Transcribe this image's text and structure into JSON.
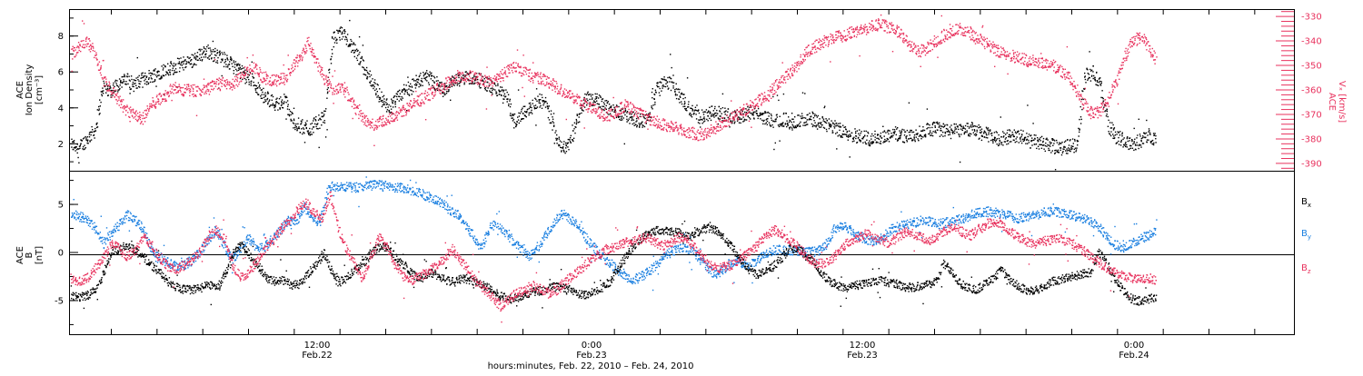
{
  "chart_data": [
    {
      "type": "scatter",
      "ylabel_lines": [
        "ACE",
        "Ion Density",
        "[cm⁻³]"
      ],
      "ylim": [
        0.5,
        9.5
      ],
      "yticks": [
        2,
        4,
        6,
        8
      ],
      "y2label_lines": [
        "ACE",
        "Vₓ [km/s]"
      ],
      "y2lim": [
        -393,
        -327
      ],
      "y2ticks": [
        -330,
        -340,
        -350,
        -360,
        -370,
        -380,
        -390
      ],
      "grid": false,
      "series": [
        {
          "axis": "left",
          "color": "#000000",
          "values": [
            2.0,
            1.8,
            2.3,
            2.8,
            5.2,
            5.0,
            5.4,
            5.6,
            5.3,
            5.6,
            5.8,
            6.0,
            6.2,
            6.3,
            6.5,
            6.6,
            6.9,
            7.2,
            7.0,
            6.8,
            6.5,
            6.2,
            5.8,
            5.5,
            4.8,
            4.5,
            4.2,
            4.5,
            3.2,
            3.0,
            2.8,
            3.2,
            3.5,
            7.8,
            8.2,
            7.8,
            7.0,
            6.2,
            5.5,
            4.6,
            4.0,
            4.4,
            5.0,
            5.2,
            5.6,
            5.8,
            5.4,
            5.0,
            5.4,
            5.6,
            5.8,
            5.6,
            5.5,
            5.2,
            5.0,
            4.6,
            3.2,
            3.8,
            4.0,
            4.5,
            4.2,
            2.8,
            1.8,
            2.0,
            3.5,
            4.6,
            4.5,
            4.3,
            4.0,
            3.8,
            3.6,
            3.4,
            3.3,
            3.5,
            5.2,
            5.6,
            5.2,
            4.6,
            4.0,
            3.6,
            3.5,
            3.8,
            3.7,
            3.6,
            3.5,
            3.7,
            3.8,
            3.6,
            3.4,
            3.3,
            3.4,
            3.2,
            3.3,
            3.4,
            3.3,
            3.1,
            3.0,
            2.8,
            2.6,
            2.5,
            2.4,
            2.3,
            2.4,
            2.5,
            2.6,
            2.5,
            2.4,
            2.6,
            2.8,
            2.9,
            2.8,
            2.7,
            2.8,
            2.9,
            2.8,
            2.6,
            2.5,
            2.3,
            2.4,
            2.5,
            2.4,
            2.2,
            2.1,
            2.0,
            1.9,
            1.8,
            1.9,
            2.0,
            5.8,
            6.0,
            5.2,
            3.0,
            2.4,
            2.2,
            2.0,
            2.2,
            2.5,
            2.3
          ]
        },
        {
          "axis": "right",
          "color": "#e8325e",
          "values": [
            -345,
            -342,
            -340,
            -345,
            -355,
            -360,
            -364,
            -368,
            -370,
            -372,
            -366,
            -364,
            -362,
            -358,
            -360,
            -360,
            -360,
            -360,
            -358,
            -357,
            -358,
            -356,
            -352,
            -350,
            -354,
            -356,
            -356,
            -355,
            -350,
            -346,
            -340,
            -348,
            -355,
            -360,
            -358,
            -362,
            -368,
            -372,
            -374,
            -373,
            -372,
            -370,
            -368,
            -366,
            -364,
            -362,
            -360,
            -358,
            -356,
            -355,
            -354,
            -355,
            -356,
            -356,
            -355,
            -352,
            -350,
            -352,
            -354,
            -355,
            -356,
            -358,
            -360,
            -362,
            -364,
            -366,
            -368,
            -370,
            -370,
            -368,
            -366,
            -368,
            -370,
            -372,
            -373,
            -374,
            -375,
            -376,
            -377,
            -378,
            -378,
            -376,
            -374,
            -372,
            -370,
            -368,
            -366,
            -364,
            -362,
            -358,
            -355,
            -352,
            -348,
            -344,
            -342,
            -340,
            -339,
            -338,
            -337,
            -336,
            -335,
            -334,
            -333,
            -334,
            -335,
            -338,
            -342,
            -344,
            -343,
            -340,
            -338,
            -336,
            -335,
            -336,
            -338,
            -340,
            -342,
            -344,
            -345,
            -346,
            -347,
            -348,
            -348,
            -349,
            -350,
            -352,
            -355,
            -360,
            -366,
            -370,
            -368,
            -364,
            -356,
            -346,
            -340,
            -338,
            -342,
            -348
          ]
        }
      ]
    },
    {
      "type": "scatter",
      "ylabel_lines": [
        "ACE",
        "B",
        "[nT]"
      ],
      "ylim": [
        -8.5,
        8.5
      ],
      "yticks": [
        -5,
        0,
        5
      ],
      "zero_line": true,
      "legend_position": "right",
      "grid": false,
      "series": [
        {
          "name": "Bx",
          "label": "B",
          "sub": "x",
          "color": "#000000",
          "values": [
            -4.5,
            -4.6,
            -4.4,
            -3.8,
            -2.0,
            0.2,
            0.5,
            0.8,
            0.2,
            -0.6,
            -1.4,
            -2.2,
            -3.0,
            -3.6,
            -3.8,
            -3.8,
            -3.6,
            -3.3,
            -3.5,
            -2.0,
            0.3,
            0.8,
            -0.4,
            -1.5,
            -2.6,
            -3.0,
            -2.8,
            -3.4,
            -3.2,
            -2.2,
            -1.2,
            0.0,
            -2.0,
            -3.0,
            -2.4,
            -1.6,
            -0.8,
            0.2,
            0.8,
            0.4,
            -0.8,
            -1.4,
            -2.3,
            -2.6,
            -2.0,
            -2.4,
            -2.8,
            -3.0,
            -2.6,
            -2.8,
            -3.2,
            -3.6,
            -4.2,
            -4.6,
            -4.8,
            -4.5,
            -4.2,
            -4.0,
            -3.8,
            -3.5,
            -3.6,
            -3.8,
            -4.2,
            -4.4,
            -4.0,
            -3.6,
            -3.0,
            -1.6,
            -0.4,
            0.8,
            1.6,
            2.2,
            2.4,
            2.4,
            2.2,
            2.0,
            1.8,
            2.3,
            2.6,
            2.4,
            1.6,
            0.6,
            -0.6,
            -1.6,
            -2.2,
            -2.0,
            -1.4,
            -0.6,
            0.4,
            0.6,
            -0.3,
            -1.0,
            -2.2,
            -3.0,
            -3.4,
            -3.6,
            -3.4,
            -3.2,
            -3.0,
            -2.8,
            -3.0,
            -3.2,
            -3.5,
            -3.6,
            -3.4,
            -3.2,
            -3.0,
            -1.0,
            -2.2,
            -3.2,
            -3.6,
            -3.8,
            -3.2,
            -2.6,
            -1.8,
            -2.8,
            -3.4,
            -3.8,
            -4.0,
            -3.6,
            -3.0,
            -2.8,
            -2.6,
            -2.4,
            -2.2,
            -2.0,
            0.2,
            -1.2,
            -2.8,
            -4.0,
            -4.8,
            -5.0,
            -4.8,
            -4.6
          ]
        },
        {
          "name": "By",
          "label": "B",
          "sub": "y",
          "color": "#1a7fe0",
          "values": [
            4.2,
            3.8,
            3.5,
            2.5,
            1.0,
            2.0,
            3.0,
            4.0,
            3.4,
            2.4,
            0.4,
            -0.4,
            -1.0,
            -1.4,
            -1.2,
            -0.8,
            0.2,
            1.4,
            2.4,
            0.8,
            -0.6,
            0.4,
            1.6,
            0.6,
            0.6,
            1.4,
            2.4,
            3.4,
            3.2,
            4.8,
            3.6,
            3.2,
            6.8,
            7.0,
            6.9,
            6.8,
            6.9,
            7.0,
            7.1,
            7.0,
            6.8,
            6.8,
            6.6,
            6.4,
            6.0,
            5.6,
            5.2,
            4.6,
            4.0,
            3.0,
            1.8,
            0.6,
            2.6,
            3.0,
            2.2,
            1.2,
            0.4,
            -0.4,
            0.6,
            1.8,
            3.0,
            4.2,
            3.6,
            2.8,
            1.6,
            0.6,
            -0.4,
            -1.0,
            -1.8,
            -2.6,
            -2.8,
            -2.4,
            -1.8,
            -1.0,
            -0.2,
            0.3,
            0.6,
            0.4,
            -0.4,
            -1.4,
            -2.2,
            -1.8,
            -1.0,
            -0.8,
            -1.4,
            -1.0,
            -0.4,
            0.2,
            0.4,
            0.3,
            0.2,
            0.2,
            0.1,
            0.2,
            1.0,
            2.6,
            2.8,
            2.4,
            1.8,
            1.4,
            1.2,
            1.6,
            2.4,
            2.8,
            3.0,
            3.2,
            3.4,
            3.2,
            3.0,
            3.2,
            3.4,
            3.6,
            4.0,
            4.2,
            4.3,
            4.2,
            4.0,
            3.8,
            3.6,
            3.8,
            4.0,
            4.2,
            4.3,
            4.2,
            4.0,
            3.8,
            3.6,
            3.2,
            2.6,
            1.6,
            0.8,
            0.6,
            1.0,
            1.4,
            1.8,
            2.2
          ]
        },
        {
          "name": "Bz",
          "label": "B",
          "sub": "z",
          "color": "#e8325e",
          "values": [
            -2.6,
            -3.0,
            -2.6,
            -1.6,
            -0.4,
            1.0,
            0.4,
            -0.4,
            0.4,
            1.8,
            0.6,
            -0.8,
            -1.4,
            -1.8,
            -1.2,
            -0.6,
            0.2,
            1.8,
            2.4,
            1.4,
            -1.4,
            -2.6,
            -2.0,
            -0.8,
            0.4,
            1.4,
            2.6,
            3.4,
            4.6,
            5.2,
            4.2,
            3.6,
            6.2,
            2.4,
            0.4,
            -1.2,
            -2.6,
            -0.4,
            1.6,
            0.6,
            -1.4,
            -2.4,
            -2.8,
            -2.4,
            -2.0,
            -1.4,
            -0.6,
            0.4,
            -0.6,
            -1.8,
            -3.0,
            -3.8,
            -4.6,
            -5.6,
            -4.8,
            -4.2,
            -3.8,
            -3.4,
            -3.8,
            -4.2,
            -3.8,
            -3.0,
            -2.2,
            -1.6,
            -0.8,
            -0.2,
            0.4,
            0.6,
            1.0,
            1.2,
            1.4,
            1.6,
            1.2,
            0.8,
            1.0,
            1.6,
            1.4,
            0.6,
            -0.4,
            -1.2,
            -1.6,
            -1.4,
            -1.0,
            -0.4,
            0.2,
            1.0,
            2.0,
            2.4,
            1.8,
            1.2,
            0.4,
            -0.6,
            -1.2,
            -1.0,
            -0.6,
            0.4,
            1.2,
            1.6,
            2.0,
            1.8,
            1.4,
            1.0,
            1.6,
            2.2,
            2.0,
            1.6,
            1.2,
            1.8,
            2.4,
            2.6,
            2.2,
            1.8,
            2.4,
            3.0,
            3.2,
            2.8,
            2.2,
            1.6,
            1.2,
            1.0,
            1.2,
            1.4,
            1.6,
            1.2,
            0.8,
            0.2,
            -0.4,
            -1.0,
            -1.6,
            -2.0,
            -2.4,
            -2.6,
            -2.8,
            -2.6,
            -2.8
          ]
        }
      ]
    }
  ],
  "x_axis": {
    "ticks": [
      {
        "time": "12:00",
        "date": "Feb.22"
      },
      {
        "time": "0:00",
        "date": "Feb.23"
      },
      {
        "time": "12:00",
        "date": "Feb.23"
      },
      {
        "time": "0:00",
        "date": "Feb.24"
      }
    ],
    "xlabel": "hours:minutes, Feb. 22, 2010 – Feb. 24, 2010"
  },
  "colors": {
    "density": "#000000",
    "vx": "#e8325e",
    "bx": "#000000",
    "by": "#1a7fe0",
    "bz": "#e8325e"
  }
}
